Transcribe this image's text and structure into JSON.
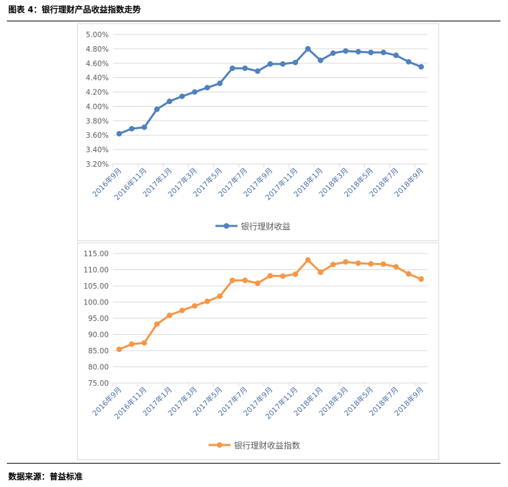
{
  "header": {
    "title": "图表 4：银行理财产品收益指数走势"
  },
  "footer": {
    "source": "数据来源：普益标准"
  },
  "chart_data": [
    {
      "type": "line",
      "categories": [
        "2016年9月",
        "2016年10月",
        "2016年11月",
        "2016年12月",
        "2017年1月",
        "2017年2月",
        "2017年3月",
        "2017年4月",
        "2017年5月",
        "2017年6月",
        "2017年7月",
        "2017年8月",
        "2017年9月",
        "2017年10月",
        "2017年11月",
        "2017年12月",
        "2018年1月",
        "2018年2月",
        "2018年3月",
        "2018年4月",
        "2018年5月",
        "2018年6月",
        "2018年7月",
        "2018年8月",
        "2018年9月"
      ],
      "tick_labels": [
        "2016年9月",
        "2016年11月",
        "2017年1月",
        "2017年3月",
        "2017年5月",
        "2017年7月",
        "2017年9月",
        "2017年11月",
        "2018年1月",
        "2018年3月",
        "2018年5月",
        "2018年7月",
        "2018年9月"
      ],
      "series": [
        {
          "name": "银行理财收益",
          "color": "#4f81bd",
          "values": [
            3.62,
            3.69,
            3.71,
            3.96,
            4.07,
            4.14,
            4.2,
            4.26,
            4.32,
            4.53,
            4.53,
            4.49,
            4.59,
            4.59,
            4.61,
            4.8,
            4.64,
            4.74,
            4.77,
            4.76,
            4.75,
            4.75,
            4.71,
            4.62,
            4.55
          ]
        }
      ],
      "ylim": [
        3.2,
        5.0
      ],
      "ystep": 0.2,
      "yformat": "percent",
      "y_tick_labels": [
        "3.20%",
        "3.40%",
        "3.60%",
        "3.80%",
        "4.00%",
        "4.20%",
        "4.40%",
        "4.60%",
        "4.80%",
        "5.00%"
      ],
      "grid": true,
      "legend": "bottom"
    },
    {
      "type": "line",
      "categories": [
        "2016年9月",
        "2016年10月",
        "2016年11月",
        "2016年12月",
        "2017年1月",
        "2017年2月",
        "2017年3月",
        "2017年4月",
        "2017年5月",
        "2017年6月",
        "2017年7月",
        "2017年8月",
        "2017年9月",
        "2017年10月",
        "2017年11月",
        "2017年12月",
        "2018年1月",
        "2018年2月",
        "2018年3月",
        "2018年4月",
        "2018年5月",
        "2018年6月",
        "2018年7月",
        "2018年8月",
        "2018年9月"
      ],
      "tick_labels": [
        "2016年9月",
        "2016年11月",
        "2017年1月",
        "2017年3月",
        "2017年5月",
        "2017年7月",
        "2017年9月",
        "2017年11月",
        "2018年1月",
        "2018年3月",
        "2018年5月",
        "2018年7月",
        "2018年9月"
      ],
      "series": [
        {
          "name": "银行理财收益指数",
          "color": "#f79646",
          "values": [
            85.4,
            87.0,
            87.4,
            93.2,
            95.9,
            97.4,
            98.8,
            100.2,
            101.8,
            106.7,
            106.7,
            105.8,
            108.1,
            108.0,
            108.6,
            113.0,
            109.2,
            111.6,
            112.4,
            112.0,
            111.8,
            111.7,
            110.9,
            108.7,
            107.1
          ]
        }
      ],
      "ylim": [
        75,
        115
      ],
      "ystep": 5,
      "yformat": "fixed2",
      "y_tick_labels": [
        "75.00",
        "80.00",
        "85.00",
        "90.00",
        "95.00",
        "100.00",
        "105.00",
        "110.00",
        "115.00"
      ],
      "grid": true,
      "legend": "bottom"
    }
  ]
}
